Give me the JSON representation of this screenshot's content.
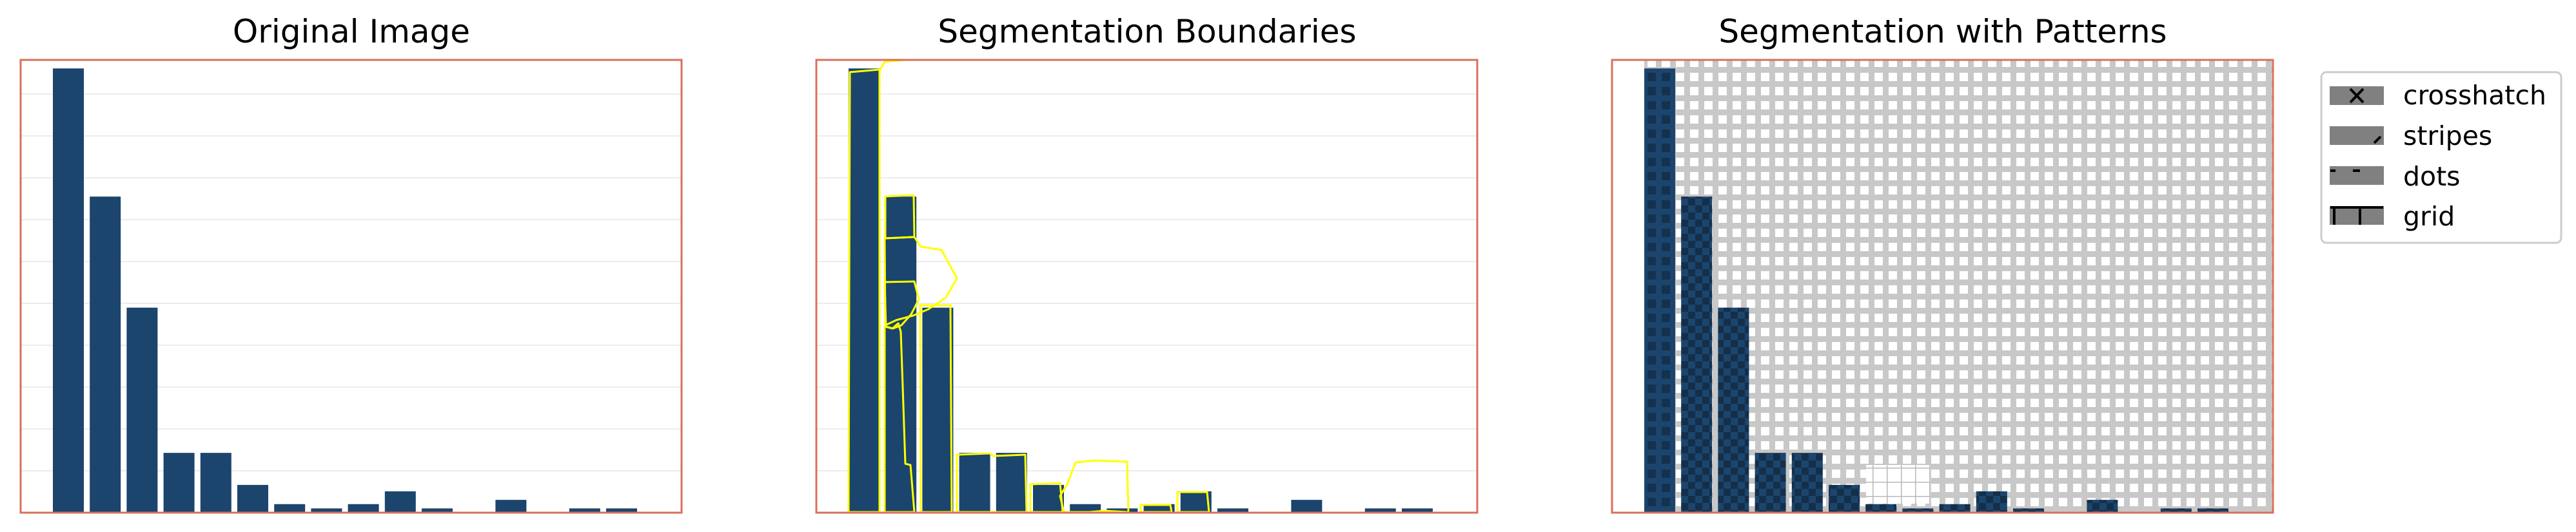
{
  "panels": [
    {
      "title": "Original Image"
    },
    {
      "title": "Segmentation Boundaries"
    },
    {
      "title": "Segmentation with Patterns"
    }
  ],
  "legend": {
    "placement": "right",
    "entries": [
      {
        "label": "crosshatch",
        "icon": "crosshatch-icon"
      },
      {
        "label": "stripes",
        "icon": "stripes-icon"
      },
      {
        "label": "dots",
        "icon": "dots-icon"
      },
      {
        "label": "grid",
        "icon": "grid-icon"
      }
    ]
  },
  "colors": {
    "bar": "#1b456d",
    "frame": "#d9705a",
    "gridline": "#ececec",
    "boundary": "#ffff00",
    "pattern_fill": "#c8c8c8",
    "legend_swatch": "#808080"
  },
  "chart_data": {
    "type": "bar",
    "title": "Original Image",
    "xlabel": "",
    "ylabel": "",
    "grid": true,
    "values": [
      104,
      74,
      48,
      14,
      14,
      6.5,
      2,
      1,
      2,
      5,
      1,
      0,
      3,
      0,
      1,
      1
    ],
    "ylim": [
      0,
      106
    ]
  }
}
